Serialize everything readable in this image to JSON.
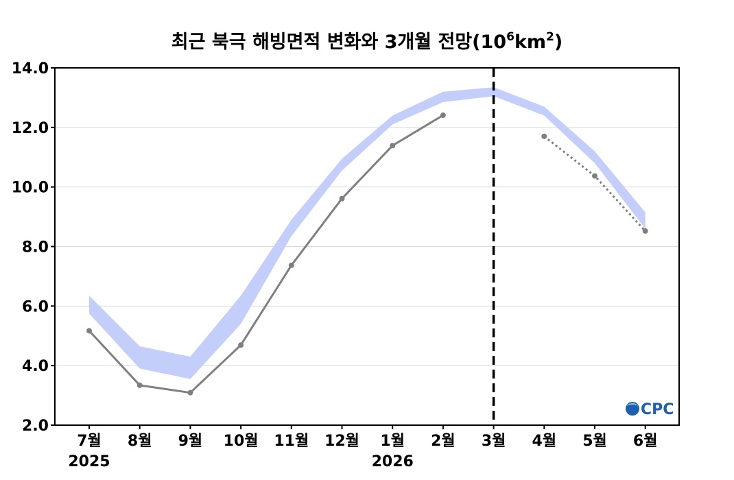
{
  "chart_data": {
    "type": "line",
    "title": "최근 북극 해빙면적 변화와 3개월 전망(10⁶km²)",
    "title_parts": {
      "main": "최근 북극 해빙면적 변화와 3개월 전망(10",
      "sup1": "6",
      "unit": "km",
      "sup2": "2",
      "close": ")"
    },
    "categories": [
      "7월",
      "8월",
      "9월",
      "10월",
      "11월",
      "12월",
      "1월",
      "2월",
      "3월",
      "4월",
      "5월",
      "6월"
    ],
    "year_labels": [
      {
        "category": "7월",
        "label": "2025"
      },
      {
        "category": "1월",
        "label": "2026"
      }
    ],
    "ylim": [
      2.0,
      14.0
    ],
    "yticks": [
      "2.0",
      "4.0",
      "6.0",
      "8.0",
      "10.0",
      "12.0",
      "14.0"
    ],
    "grid": true,
    "forecast_divider_category": "3월",
    "climatology_band": {
      "lower": [
        5.75,
        3.9,
        3.55,
        5.4,
        8.35,
        10.55,
        12.1,
        12.85,
        13.05,
        12.4,
        10.8,
        8.6
      ],
      "upper": [
        6.35,
        4.65,
        4.3,
        6.35,
        8.9,
        10.95,
        12.4,
        13.2,
        13.35,
        12.7,
        11.2,
        9.15
      ],
      "color": "#c3cffa"
    },
    "series": [
      {
        "style": "observed",
        "color": "#7f7f7f",
        "values": [
          5.17,
          3.34,
          3.09,
          4.69,
          7.37,
          9.61,
          11.39,
          12.41,
          null,
          null,
          null,
          null
        ]
      },
      {
        "style": "forecast",
        "color": "#7f7f7f",
        "values": [
          null,
          null,
          null,
          null,
          null,
          null,
          null,
          null,
          null,
          11.7,
          10.37,
          8.52
        ]
      }
    ]
  },
  "logo": {
    "text": "CPC",
    "icon": "globe-icon",
    "color": "#1f5fb0",
    "accent": "#2aa0d8"
  }
}
